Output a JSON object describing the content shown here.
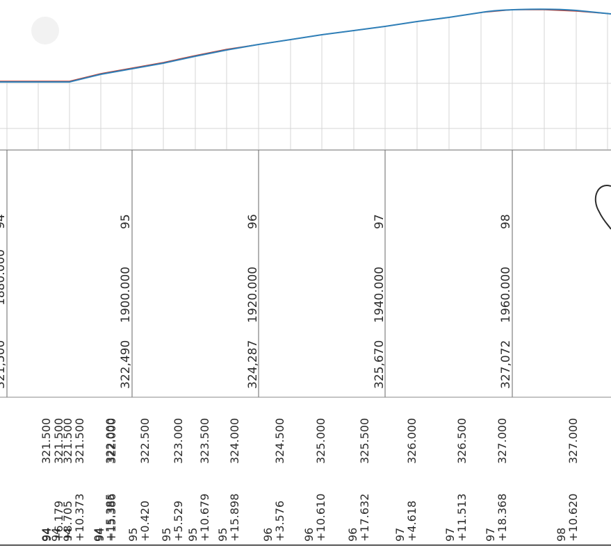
{
  "colors": {
    "profile_line": "#2e7fb8",
    "profile_ground": "#c0392b",
    "grid": "#d6d6d6",
    "ink": "#2b2b2b",
    "frame": "#555555"
  },
  "partial_row": {
    "elevation": "321,500",
    "station": "1880.000",
    "number": "94"
  },
  "stations": [
    {
      "elevation": "322,490",
      "station": "1900.000",
      "number": "95"
    },
    {
      "elevation": "324,287",
      "station": "1920.000",
      "number": "96"
    },
    {
      "elevation": "325,670",
      "station": "1940.000",
      "number": "97"
    },
    {
      "elevation": "327,072",
      "station": "1960.000",
      "number": "98"
    }
  ],
  "profile_points": [
    {
      "chainage": "94",
      "elevation": "321.500"
    },
    {
      "chainage": "94\n+6.179",
      "elevation": "321.500"
    },
    {
      "chainage": "94\n+8.705",
      "elevation": "321.500"
    },
    {
      "chainage": "94\n+10.373",
      "elevation": "321.500"
    },
    {
      "chainage": "94\n+15.385",
      "elevation": "322.000"
    },
    {
      "chainage": "94\n+15.386",
      "elevation": "322.000"
    },
    {
      "chainage": "95\n+0.420",
      "elevation": "322.500"
    },
    {
      "chainage": "95\n+5.529",
      "elevation": "323.000"
    },
    {
      "chainage": "95\n+10.679",
      "elevation": "323.500"
    },
    {
      "chainage": "95\n+15.898",
      "elevation": "324.000"
    },
    {
      "chainage": "96\n+3.576",
      "elevation": "324.500"
    },
    {
      "chainage": "96\n+10.610",
      "elevation": "325.000"
    },
    {
      "chainage": "96\n+17.632",
      "elevation": "325.500"
    },
    {
      "chainage": "97\n+4.618",
      "elevation": "326.000"
    },
    {
      "chainage": "97\n+11.513",
      "elevation": "326.500"
    },
    {
      "chainage": "97\n+18.368",
      "elevation": "327.000"
    },
    {
      "chainage": "98\n+10.620",
      "elevation": "327.000"
    }
  ]
}
